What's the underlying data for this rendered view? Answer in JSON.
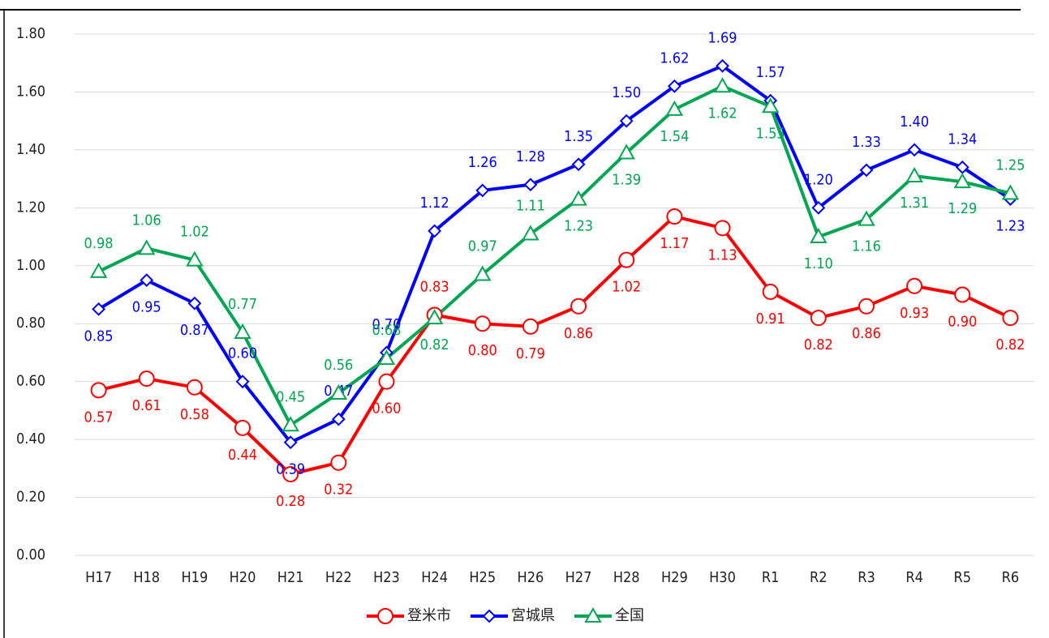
{
  "chart_data": {
    "type": "line",
    "categories": [
      "H17",
      "H18",
      "H19",
      "H20",
      "H21",
      "H22",
      "H23",
      "H24",
      "H25",
      "H26",
      "H27",
      "H28",
      "H29",
      "H30",
      "R1",
      "R2",
      "R3",
      "R4",
      "R5",
      "R6"
    ],
    "series": [
      {
        "name": "登米市",
        "color": "#ff0000",
        "marker": "circle",
        "values": [
          0.57,
          0.61,
          0.58,
          0.44,
          0.28,
          0.32,
          0.6,
          0.83,
          0.8,
          0.79,
          0.86,
          1.02,
          1.17,
          1.13,
          0.91,
          0.82,
          0.86,
          0.93,
          0.9,
          0.82
        ],
        "value_labels": [
          "0.57",
          "0.61",
          "0.58",
          "0.44",
          "0.28",
          "0.32",
          "0.60",
          "0.83",
          "0.80",
          "0.79",
          "0.86",
          "1.02",
          "1.17",
          "1.13",
          "0.91",
          "0.82",
          "0.86",
          "0.93",
          "0.90",
          "0.82"
        ]
      },
      {
        "name": "宮城県",
        "color": "#0000ff",
        "marker": "diamond",
        "values": [
          0.85,
          0.95,
          0.87,
          0.6,
          0.39,
          0.47,
          0.7,
          1.12,
          1.26,
          1.28,
          1.35,
          1.5,
          1.62,
          1.69,
          1.57,
          1.2,
          1.33,
          1.4,
          1.34,
          1.23
        ],
        "value_labels": [
          "0.85",
          "0.95",
          "0.87",
          "0.60",
          "0.39",
          "0.47",
          "0.70",
          "1.12",
          "1.26",
          "1.28",
          "1.35",
          "1.50",
          "1.62",
          "1.69",
          "1.57",
          "1.20",
          "1.33",
          "1.40",
          "1.34",
          "1.23"
        ]
      },
      {
        "name": "全国",
        "color": "#00a651",
        "marker": "triangle",
        "values": [
          0.98,
          1.06,
          1.02,
          0.77,
          0.45,
          0.56,
          0.68,
          0.82,
          0.97,
          1.11,
          1.23,
          1.39,
          1.54,
          1.62,
          1.55,
          1.1,
          1.16,
          1.31,
          1.29,
          1.25
        ],
        "value_labels": [
          "0.98",
          "1.06",
          "1.02",
          "0.77",
          "0.45",
          "0.56",
          "0.68",
          "0.82",
          "0.97",
          "1.11",
          "1.23",
          "1.39",
          "1.54",
          "1.62",
          "1.55",
          "1.10",
          "1.16",
          "1.31",
          "1.29",
          "1.25"
        ]
      }
    ],
    "ylim": [
      0,
      1.8
    ],
    "yticks": [
      {
        "value": 0,
        "label": "0.00"
      },
      {
        "value": 0.2,
        "label": "0.20"
      },
      {
        "value": 0.4,
        "label": "0.40"
      },
      {
        "value": 0.6,
        "label": "0.60"
      },
      {
        "value": 0.8,
        "label": "0.80"
      },
      {
        "value": 1.0,
        "label": "1.00"
      },
      {
        "value": 1.2,
        "label": "1.20"
      },
      {
        "value": 1.4,
        "label": "1.40"
      },
      {
        "value": 1.6,
        "label": "1.60"
      },
      {
        "value": 1.8,
        "label": "1.80"
      }
    ],
    "grid": true,
    "legend": "bottom"
  }
}
